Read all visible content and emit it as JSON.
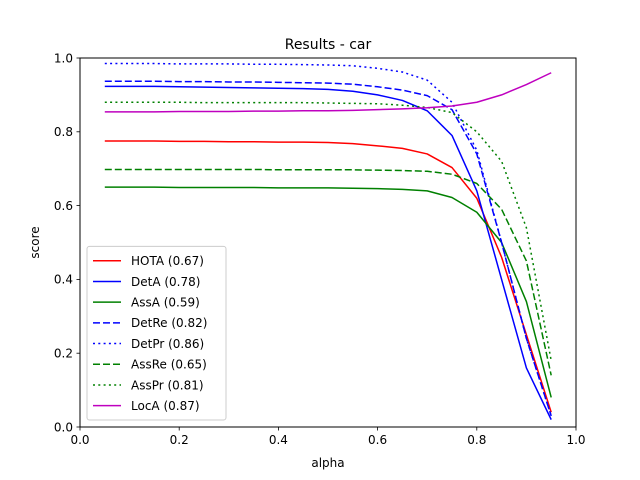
{
  "chart_data": {
    "type": "line",
    "title": "Results - car",
    "xlabel": "alpha",
    "ylabel": "score",
    "xlim": [
      0.0,
      1.0
    ],
    "ylim": [
      0.0,
      1.0
    ],
    "xticks": [
      "0.0",
      "0.2",
      "0.4",
      "0.6",
      "0.8",
      "1.0"
    ],
    "yticks": [
      "0.0",
      "0.2",
      "0.4",
      "0.6",
      "0.8",
      "1.0"
    ],
    "grid": false,
    "legend_position": "lower-left",
    "x": [
      0.05,
      0.1,
      0.15,
      0.2,
      0.25,
      0.3,
      0.35,
      0.4,
      0.45,
      0.5,
      0.55,
      0.6,
      0.65,
      0.7,
      0.75,
      0.8,
      0.85,
      0.9,
      0.95
    ],
    "series": [
      {
        "name": "HOTA (0.67)",
        "color": "#ff0000",
        "dash": "solid",
        "values": [
          0.775,
          0.775,
          0.775,
          0.774,
          0.774,
          0.773,
          0.773,
          0.772,
          0.772,
          0.771,
          0.768,
          0.762,
          0.755,
          0.74,
          0.703,
          0.62,
          0.46,
          0.25,
          0.04
        ]
      },
      {
        "name": "DetA (0.78)",
        "color": "#0000ff",
        "dash": "solid",
        "values": [
          0.923,
          0.923,
          0.923,
          0.922,
          0.921,
          0.92,
          0.919,
          0.918,
          0.917,
          0.915,
          0.91,
          0.9,
          0.885,
          0.857,
          0.79,
          0.64,
          0.4,
          0.16,
          0.02
        ]
      },
      {
        "name": "AssA (0.59)",
        "color": "#008000",
        "dash": "solid",
        "values": [
          0.65,
          0.65,
          0.65,
          0.649,
          0.649,
          0.649,
          0.649,
          0.648,
          0.648,
          0.648,
          0.647,
          0.646,
          0.644,
          0.64,
          0.622,
          0.582,
          0.5,
          0.34,
          0.08
        ]
      },
      {
        "name": "DetRe (0.82)",
        "color": "#0000ff",
        "dash": "dashed",
        "values": [
          0.937,
          0.937,
          0.937,
          0.936,
          0.936,
          0.935,
          0.935,
          0.934,
          0.933,
          0.932,
          0.929,
          0.922,
          0.913,
          0.898,
          0.86,
          0.74,
          0.5,
          0.24,
          0.03
        ]
      },
      {
        "name": "DetPr (0.86)",
        "color": "#0000ff",
        "dash": "dotted",
        "values": [
          0.985,
          0.985,
          0.985,
          0.984,
          0.984,
          0.984,
          0.983,
          0.983,
          0.982,
          0.981,
          0.979,
          0.972,
          0.962,
          0.94,
          0.88,
          0.75,
          0.5,
          0.24,
          0.03
        ]
      },
      {
        "name": "AssRe (0.65)",
        "color": "#008000",
        "dash": "dashed",
        "values": [
          0.698,
          0.698,
          0.698,
          0.698,
          0.698,
          0.698,
          0.698,
          0.697,
          0.697,
          0.697,
          0.697,
          0.696,
          0.695,
          0.693,
          0.685,
          0.66,
          0.59,
          0.45,
          0.14
        ]
      },
      {
        "name": "AssPr (0.81)",
        "color": "#008000",
        "dash": "dotted",
        "values": [
          0.88,
          0.88,
          0.88,
          0.88,
          0.879,
          0.879,
          0.879,
          0.879,
          0.879,
          0.878,
          0.877,
          0.876,
          0.872,
          0.866,
          0.852,
          0.8,
          0.72,
          0.54,
          0.18
        ]
      },
      {
        "name": "LocA (0.87)",
        "color": "#bf00bf",
        "dash": "solid",
        "values": [
          0.854,
          0.854,
          0.854,
          0.855,
          0.855,
          0.855,
          0.856,
          0.856,
          0.857,
          0.857,
          0.858,
          0.86,
          0.862,
          0.865,
          0.87,
          0.88,
          0.9,
          0.928,
          0.96
        ]
      }
    ]
  }
}
